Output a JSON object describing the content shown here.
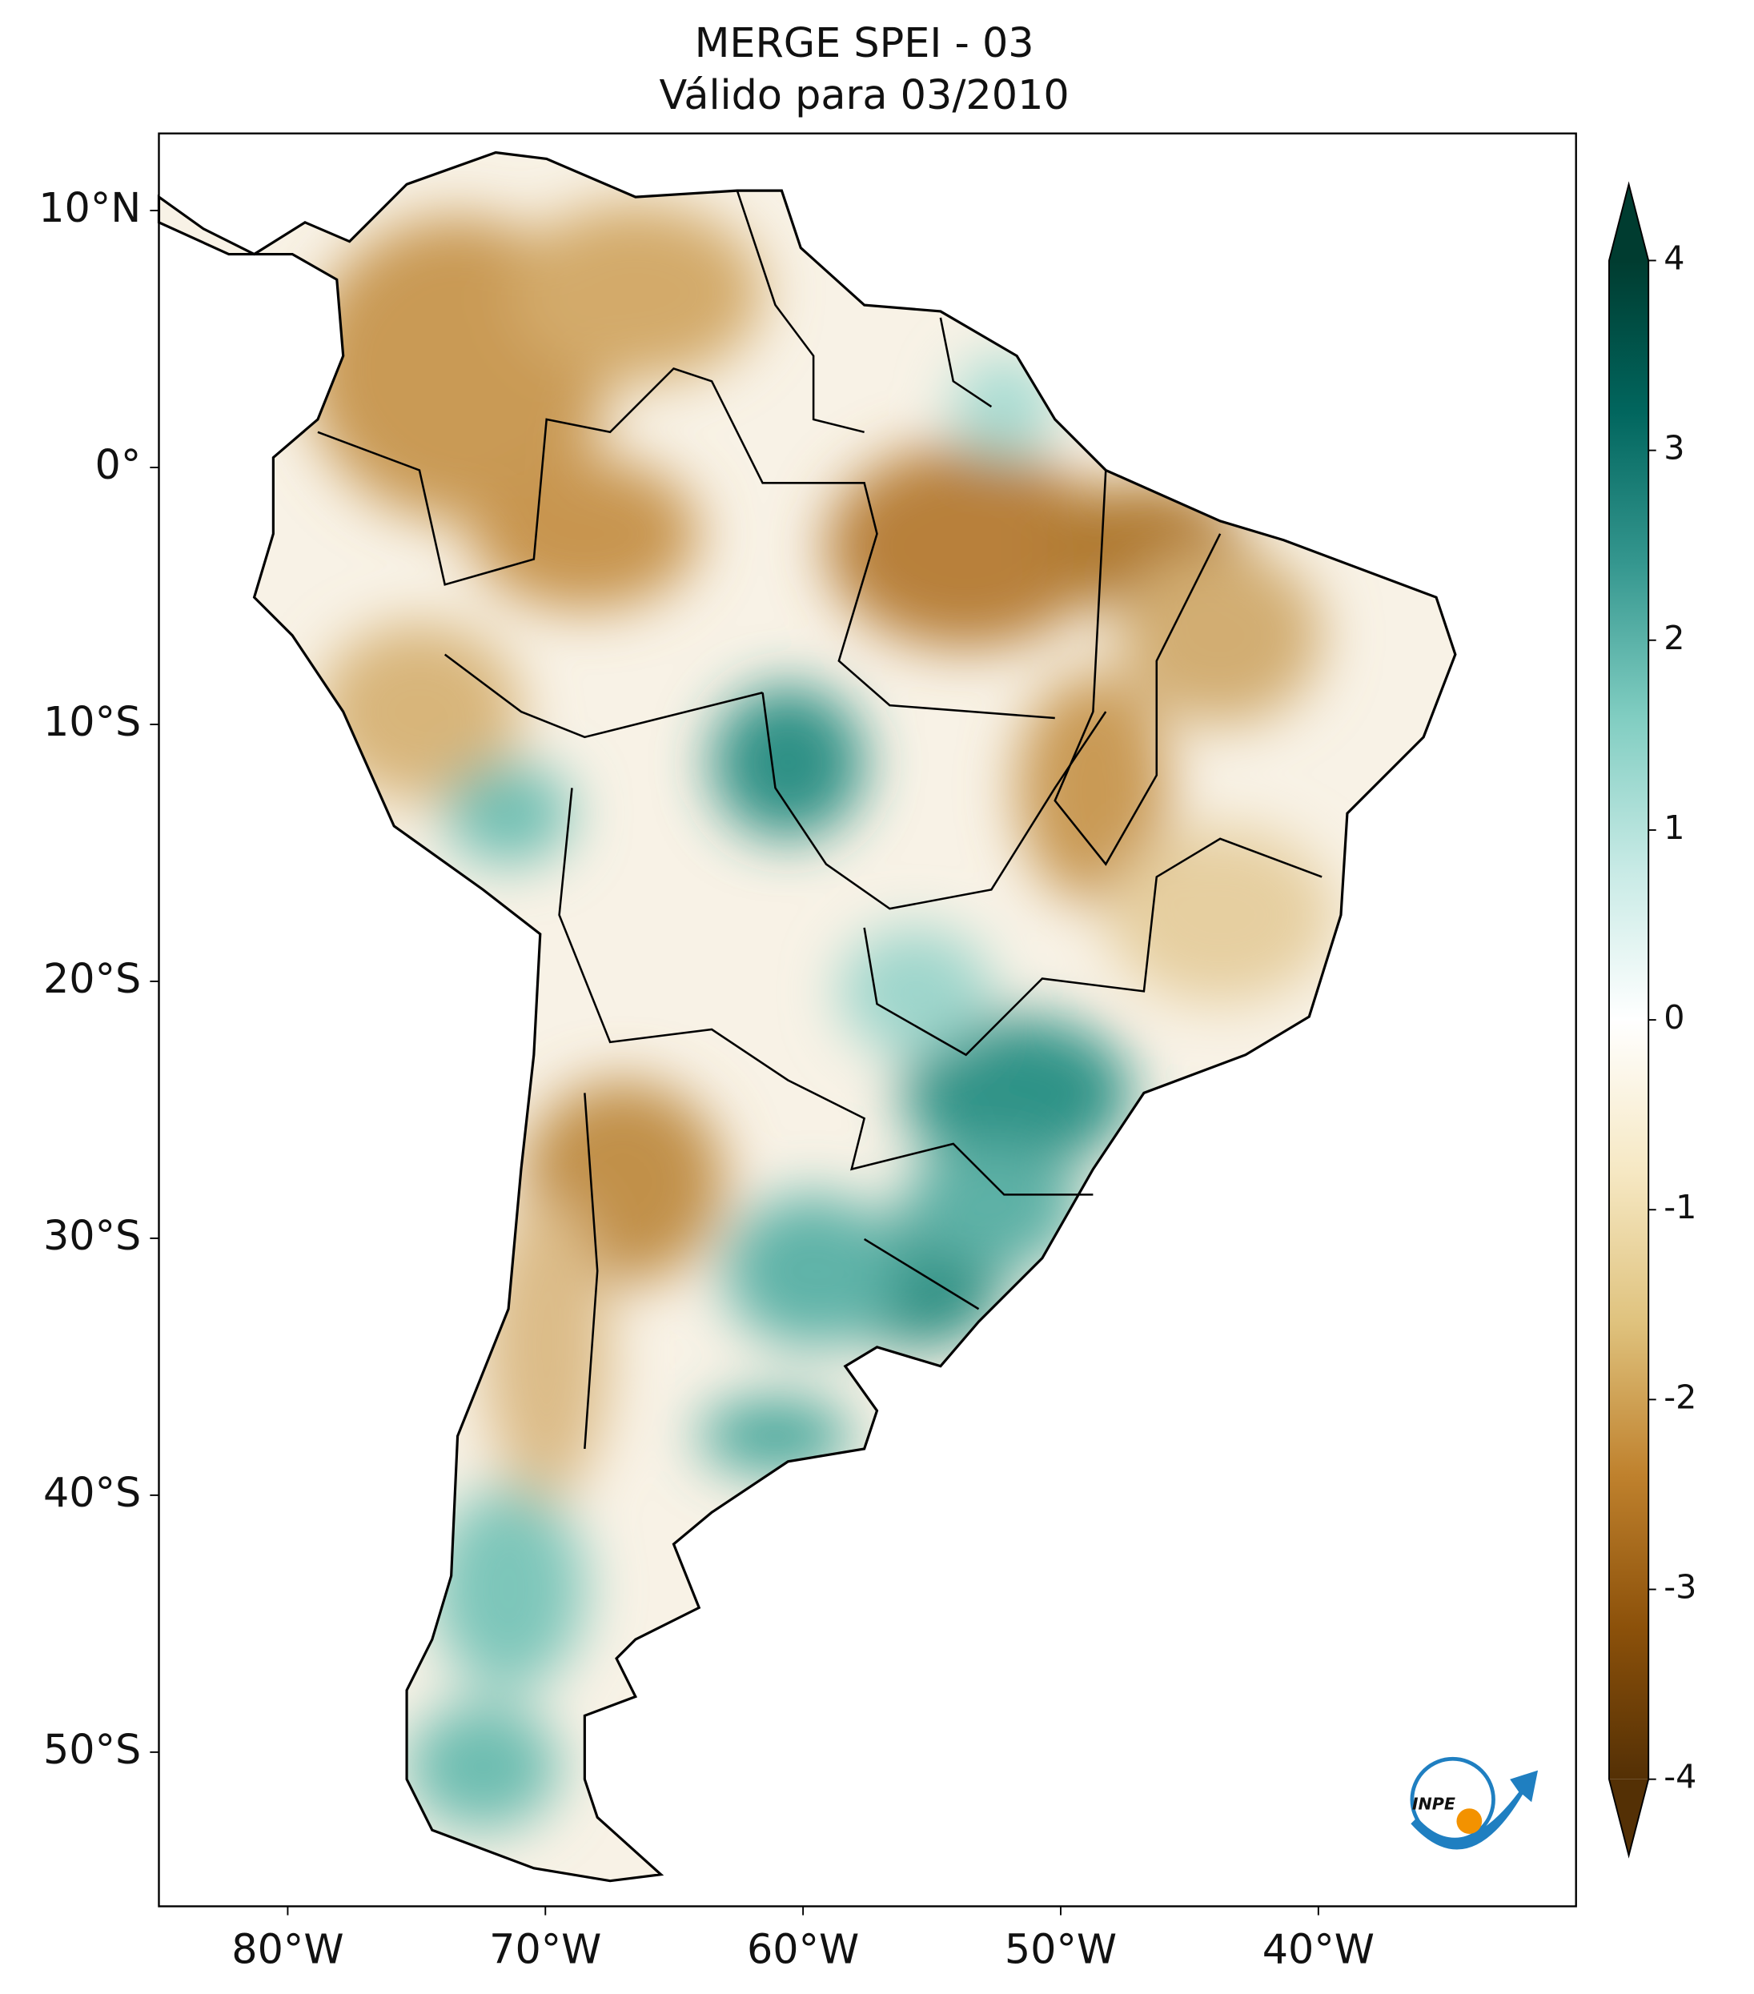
{
  "chart_data": {
    "type": "map",
    "title": "MERGE   SPEI - 03",
    "subtitle": "Válido para 03/2010",
    "xlim": [
      -85,
      -30
    ],
    "ylim": [
      -56,
      13
    ],
    "xticks": [
      {
        "value": -80,
        "label": "80°W"
      },
      {
        "value": -70,
        "label": "70°W"
      },
      {
        "value": -60,
        "label": "60°W"
      },
      {
        "value": -50,
        "label": "50°W"
      },
      {
        "value": -40,
        "label": "40°W"
      }
    ],
    "yticks": [
      {
        "value": 10,
        "label": "10°N"
      },
      {
        "value": 0,
        "label": "0°"
      },
      {
        "value": -10,
        "label": "10°S"
      },
      {
        "value": -20,
        "label": "20°S"
      },
      {
        "value": -30,
        "label": "30°S"
      },
      {
        "value": -40,
        "label": "40°S"
      },
      {
        "value": -50,
        "label": "50°S"
      }
    ],
    "colorbar": {
      "lim": [
        -4,
        4
      ],
      "ticks": [
        4,
        3,
        2,
        1,
        0,
        -1,
        -2,
        -3,
        -4
      ],
      "extend": "both",
      "colors": [
        "#543005",
        "#8c510a",
        "#bf812d",
        "#dfc27d",
        "#f6e8c3",
        "#ffffff",
        "#c7eae5",
        "#80cdc1",
        "#35978f",
        "#01665e",
        "#003c30"
      ]
    },
    "logo_text": "INPE"
  }
}
